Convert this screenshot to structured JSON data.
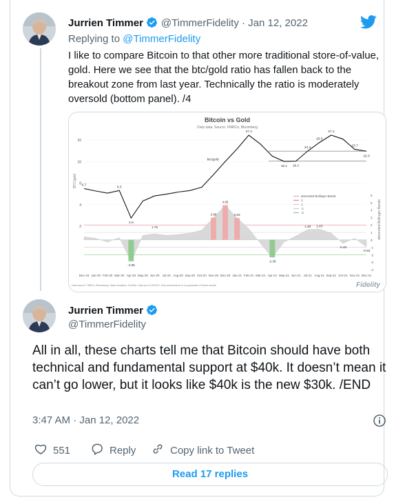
{
  "tweet1": {
    "name": "Jurrien Timmer",
    "handle_date": "@TimmerFidelity · Jan 12, 2022",
    "replying_prefix": "Replying to",
    "replying_handle": "@TimmerFidelity",
    "text": "I like to compare Bitcoin to that other more traditional store-of-value, gold.  Here we see that the btc/gold ratio has fallen back to the breakout zone from last year.  Technically the ratio is moderately oversold (bottom panel). /4"
  },
  "chart_data": {
    "type": "line",
    "title": "Bitcoin vs Gold",
    "subtitle": "Daily data.  Source: FMRCo, Bloomberg",
    "series": [
      {
        "name": "btc/gold",
        "values": [
          6.7,
          6.2,
          5.8,
          6.3,
          2.6,
          4.5,
          5.3,
          5.6,
          6.0,
          6.3,
          7.0,
          10.5,
          16.0,
          24.0,
          37.4,
          28.0,
          19.0,
          16.1,
          16.2,
          22.4,
          29.5,
          37.4,
          33.0,
          23.7,
          22.3
        ]
      },
      {
        "name": "detrended Bollinger Bands",
        "values": [
          0.4,
          0.2,
          -0.3,
          0.3,
          -2.88,
          0.6,
          0.8,
          0.6,
          0.7,
          0.9,
          1.3,
          2.98,
          4.65,
          2.93,
          1.5,
          -0.5,
          -2.36,
          -0.3,
          0.5,
          1.38,
          1.43,
          0.9,
          -0.48,
          0.2,
          -0.93
        ]
      }
    ],
    "x_tick_labels": [
      "Dec-19",
      "Jan-20",
      "Feb-20",
      "Mar-20",
      "Apr-20",
      "May-20",
      "Jun-20",
      "Jul-20",
      "Aug-20",
      "Sep-20",
      "Oct-20",
      "Nov-20",
      "Dec-20",
      "Jan-21",
      "Feb-21",
      "Mar-21",
      "Apr-21",
      "May-21",
      "Jun-21",
      "Jul-21",
      "Aug-21",
      "Sep-21",
      "Oct-21",
      "Nov-21",
      "Dec-21"
    ],
    "y_tick_labels_left": [
      "32",
      "16",
      "8",
      "4",
      "2"
    ],
    "y_tick_labels_right": [
      "6",
      "5",
      "4",
      "3",
      "2",
      "1",
      "0",
      "-1",
      "-2",
      "-3",
      "-4"
    ],
    "ylabel_left": "BTC/gold",
    "ylabel_right": "detrended Bollinger Bands",
    "annotations_upper": [
      "6.7",
      "6.3",
      "2.6",
      "btc/gold",
      "37.4",
      "16.1",
      "16.2",
      "22.4",
      "29.5",
      "37.4",
      "23.7",
      "22.3"
    ],
    "annotations_lower": [
      "1.76",
      "-2.88",
      "2.98",
      "4.65",
      "2.93",
      "-2.36",
      "1.38",
      "1.43",
      "-0.48",
      "-0.93"
    ],
    "legend": [
      "detrended Bollinger Bands",
      "2",
      "1",
      "-1",
      "-2"
    ],
    "footer": "Data source: FMRCo, Bloomberg, Haver Analytics, FactSet. Data as of 1/9/2022. Past performance is no guarantee of future results.",
    "logo": "Fidelity"
  },
  "tweet2": {
    "name": "Jurrien Timmer",
    "handle": "@TimmerFidelity",
    "text": "All in all, these charts tell me that Bitcoin should have both technical and fundamental support at $40k.  It doesn’t mean it  can’t go lower, but it looks like $40k is the new $30k.  /END",
    "timestamp": "3:47 AM · Jan 12, 2022"
  },
  "actions": {
    "likes": "551",
    "reply": "Reply",
    "copy_link": "Copy link to Tweet",
    "read_replies": "Read 17 replies"
  },
  "icons": {
    "bird": "twitter-bird-icon",
    "verified": "verified-badge-icon",
    "heart": "heart-icon",
    "reply": "reply-icon",
    "link": "link-icon",
    "info": "info-icon"
  },
  "colors": {
    "brand_blue": "#1d9bf0",
    "text_primary": "#0f1419",
    "text_muted": "#536471",
    "border": "#cfd9de"
  }
}
